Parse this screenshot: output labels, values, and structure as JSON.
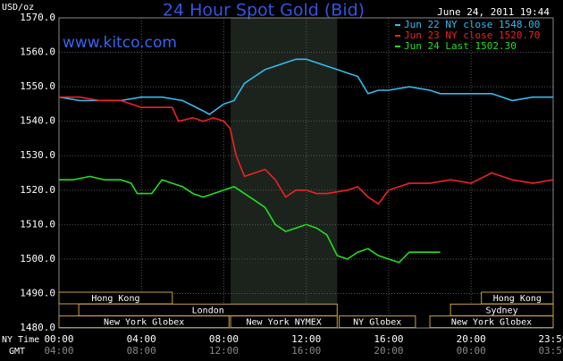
{
  "chart_data": {
    "type": "line",
    "title": "24 Hour Spot Gold (Bid)",
    "timestamp": "June 24, 2011 19:44",
    "y_label": "USD/oz",
    "annotation": "www.kitco.com",
    "x_label": "NY Time",
    "x2_label": "GMT",
    "xlim": [
      0,
      23.983
    ],
    "xticks": [
      {
        "value": 0,
        "label": "00:00"
      },
      {
        "value": 4,
        "label": "04:00"
      },
      {
        "value": 8,
        "label": "08:00"
      },
      {
        "value": 12,
        "label": "12:00"
      },
      {
        "value": 16,
        "label": "16:00"
      },
      {
        "value": 20,
        "label": "20:00"
      },
      {
        "value": 23.983,
        "label": "23:59"
      }
    ],
    "x2ticks": [
      {
        "value": 0,
        "label": "04:00"
      },
      {
        "value": 4,
        "label": "08:00"
      },
      {
        "value": 8,
        "label": "12:00"
      },
      {
        "value": 12,
        "label": "16:00"
      },
      {
        "value": 16,
        "label": "20:00"
      },
      {
        "value": 20,
        "label": "00:00"
      },
      {
        "value": 23.983,
        "label": "03:59"
      }
    ],
    "ylim": [
      1480,
      1570
    ],
    "yticks": [
      {
        "value": 1480,
        "label": "1480.0"
      },
      {
        "value": 1490,
        "label": "1490.0"
      },
      {
        "value": 1500,
        "label": "1500.0"
      },
      {
        "value": 1510,
        "label": "1510.0"
      },
      {
        "value": 1520,
        "label": "1520.0"
      },
      {
        "value": 1530,
        "label": "1530.0"
      },
      {
        "value": 1540,
        "label": "1540.0"
      },
      {
        "value": 1550,
        "label": "1550.0"
      },
      {
        "value": 1560,
        "label": "1560.0"
      },
      {
        "value": 1570,
        "label": "1570.0"
      }
    ],
    "grid": true,
    "highlight": [
      8.333,
      13.5
    ],
    "sessions": [
      {
        "label": "Hong Kong",
        "start": 0,
        "end": 5.5,
        "row": 0
      },
      {
        "label": "Hong Kong",
        "start": 20.5,
        "end": 23.983,
        "row": 0
      },
      {
        "label": "London",
        "start": 0.96,
        "end": 13.5,
        "row": 1
      },
      {
        "label": "Sydney",
        "start": 19,
        "end": 23.983,
        "row": 1
      },
      {
        "label": "New York Globex",
        "start": 0,
        "end": 8.25,
        "row": 2
      },
      {
        "label": "New York NYMEX",
        "start": 8.33,
        "end": 13.5,
        "row": 2
      },
      {
        "label": "NY Globex",
        "start": 13.6,
        "end": 17.3,
        "row": 2
      },
      {
        "label": "New York Globex",
        "start": 18,
        "end": 23.983,
        "row": 2
      }
    ],
    "series": [
      {
        "name": "Jun 22 NY close 1548.00",
        "color": "#33bbee",
        "x": [
          0,
          1,
          2,
          3,
          4,
          5,
          6,
          7,
          7.3,
          8,
          8.5,
          9,
          9.5,
          10,
          10.5,
          11,
          11.5,
          12,
          12.5,
          13,
          13.5,
          14,
          14.5,
          15,
          15.5,
          16,
          17,
          18,
          18.5,
          19,
          20,
          21,
          22,
          23,
          23.983
        ],
        "values": [
          1547,
          1546,
          1546,
          1546,
          1547,
          1547,
          1546,
          1543,
          1542,
          1545,
          1546,
          1551,
          1553,
          1555,
          1556,
          1557,
          1558,
          1558,
          1557,
          1556,
          1555,
          1554,
          1553,
          1548,
          1549,
          1549,
          1550,
          1549,
          1548,
          1548,
          1548,
          1548,
          1546,
          1547,
          1547
        ]
      },
      {
        "name": "Jun 23 NY close 1520.70",
        "color": "#ee2222",
        "x": [
          0,
          1,
          2,
          3,
          3.5,
          4,
          5,
          5.5,
          5.8,
          6.5,
          7,
          7.5,
          8,
          8.3,
          8.6,
          9,
          9.5,
          10,
          10.5,
          11,
          11.5,
          12,
          12.5,
          13,
          14,
          14.5,
          15,
          15.5,
          16,
          17,
          18,
          19,
          20,
          21,
          22,
          23,
          23.983
        ],
        "values": [
          1547,
          1547,
          1546,
          1546,
          1545,
          1544,
          1544,
          1544,
          1540,
          1541,
          1540,
          1541,
          1540,
          1538,
          1530,
          1524,
          1525,
          1526,
          1523,
          1518,
          1520,
          1520,
          1519,
          1519,
          1520,
          1521,
          1518,
          1516,
          1520,
          1522,
          1522,
          1523,
          1522,
          1525,
          1523,
          1522,
          1523
        ]
      },
      {
        "name": "Jun 24 Last 1502.30",
        "color": "#22dd22",
        "x": [
          0,
          0.7,
          1.5,
          2.2,
          3,
          3.5,
          3.8,
          4.5,
          5,
          5.5,
          6,
          6.5,
          7,
          7.5,
          8,
          8.5,
          9,
          9.5,
          10,
          10.5,
          11,
          11.5,
          12,
          12.5,
          13,
          13.5,
          14,
          14.5,
          15,
          15.5,
          16,
          16.5,
          17,
          17.5,
          18.5
        ],
        "values": [
          1523,
          1523,
          1524,
          1523,
          1523,
          1522,
          1519,
          1519,
          1523,
          1522,
          1521,
          1519,
          1518,
          1519,
          1520,
          1521,
          1519,
          1517,
          1515,
          1510,
          1508,
          1509,
          1510,
          1509,
          1507,
          1501,
          1500,
          1502,
          1503,
          1501,
          1500,
          1499,
          1502,
          1502,
          1502
        ]
      }
    ]
  }
}
